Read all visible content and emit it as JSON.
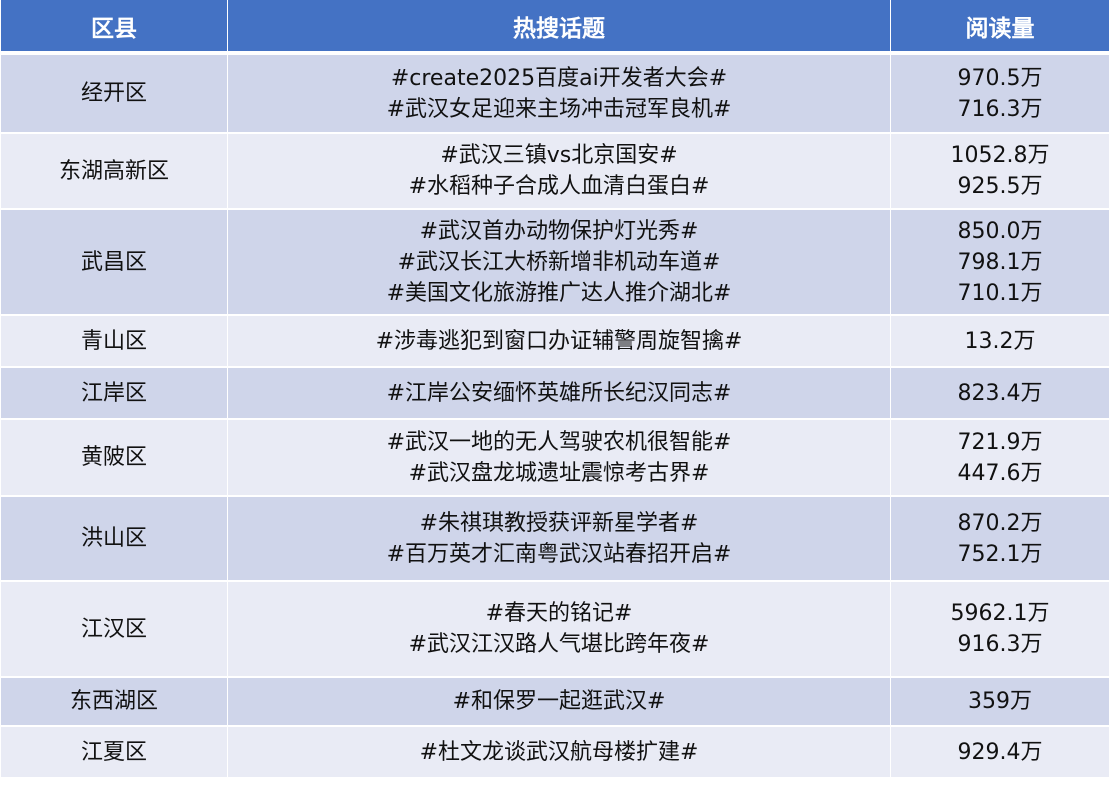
{
  "header": {
    "district": "区县",
    "topic": "热搜话题",
    "reads": "阅读量"
  },
  "colors": {
    "header": "#4472C4",
    "row_odd": "#CFD5EA",
    "row_even": "#E9EBF5"
  },
  "rows": [
    {
      "district": "经开区",
      "topics": [
        "#create2025百度ai开发者大会#",
        "#武汉女足迎来主场冲击冠军良机#"
      ],
      "reads": [
        "970.5万",
        "716.3万"
      ]
    },
    {
      "district": "东湖高新区",
      "topics": [
        "#武汉三镇vs北京国安#",
        "#水稻种子合成人血清白蛋白#"
      ],
      "reads": [
        "1052.8万",
        "925.5万"
      ]
    },
    {
      "district": "武昌区",
      "topics": [
        "#武汉首办动物保护灯光秀#",
        "#武汉长江大桥新增非机动车道#",
        "#美国文化旅游推广达人推介湖北#"
      ],
      "reads": [
        "850.0万",
        "798.1万",
        "710.1万"
      ]
    },
    {
      "district": "青山区",
      "topics": [
        "#涉毒逃犯到窗口办证辅警周旋智擒#"
      ],
      "reads": [
        "13.2万"
      ]
    },
    {
      "district": "江岸区",
      "topics": [
        "#江岸公安缅怀英雄所长纪汉同志#"
      ],
      "reads": [
        "823.4万"
      ]
    },
    {
      "district": "黄陂区",
      "topics": [
        "#武汉一地的无人驾驶农机很智能#",
        "#武汉盘龙城遗址震惊考古界#"
      ],
      "reads": [
        "721.9万",
        "447.6万"
      ]
    },
    {
      "district": "洪山区",
      "topics": [
        "#朱祺琪教授获评新星学者#",
        "#百万英才汇南粤武汉站春招开启#"
      ],
      "reads": [
        "870.2万",
        "752.1万"
      ]
    },
    {
      "district": "江汉区",
      "topics": [
        "#春天的铭记#",
        "#武汉江汉路人气堪比跨年夜#"
      ],
      "reads": [
        "5962.1万",
        "916.3万"
      ]
    },
    {
      "district": "东西湖区",
      "topics": [
        "#和保罗一起逛武汉#"
      ],
      "reads": [
        "359万"
      ]
    },
    {
      "district": "江夏区",
      "topics": [
        "#杜文龙谈武汉航母楼扩建#"
      ],
      "reads": [
        "929.4万"
      ]
    }
  ]
}
